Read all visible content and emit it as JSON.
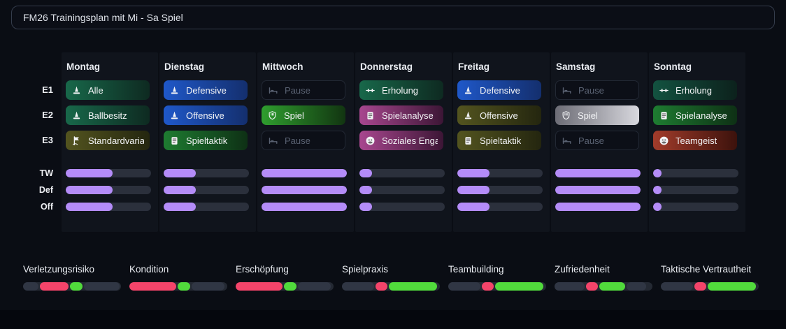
{
  "theme": {
    "background": "#0a0d14",
    "panel": "#10141c",
    "accent_purple": "#b48cf8",
    "bar_track": "#2b303c",
    "stat_red": "#f4446a",
    "stat_green": "#51da3c",
    "stat_gray": "#303644",
    "border": "#343c4b"
  },
  "title_bar": {
    "value": "FM26 Trainingsplan mit Mi - Sa Spiel"
  },
  "schedule": {
    "row_labels": [
      "E1",
      "E2",
      "E3",
      "TW",
      "Def",
      "Off"
    ],
    "days": [
      {
        "name": "Montag",
        "sessions": [
          {
            "label": "Alle",
            "icon": "cone-icon",
            "variant": "green"
          },
          {
            "label": "Ballbesitz",
            "icon": "cone-icon",
            "variant": "green"
          },
          {
            "label": "Standardvaria...",
            "icon": "corner-flag-icon",
            "variant": "olive"
          }
        ],
        "bars": {
          "tw": 55,
          "def": 55,
          "off": 55
        }
      },
      {
        "name": "Dienstag",
        "sessions": [
          {
            "label": "Defensive",
            "icon": "cone-icon",
            "variant": "blue"
          },
          {
            "label": "Offensive",
            "icon": "cone-icon",
            "variant": "blue"
          },
          {
            "label": "Spieltaktik",
            "icon": "clipboard-icon",
            "variant": "tactic-green"
          }
        ],
        "bars": {
          "tw": 38,
          "def": 38,
          "off": 38
        }
      },
      {
        "name": "Mittwoch",
        "sessions": [
          {
            "label": "Pause",
            "icon": "bed-icon",
            "variant": "pause"
          },
          {
            "label": "Spiel",
            "icon": "shield-icon",
            "variant": "match-green"
          },
          {
            "label": "Pause",
            "icon": "bed-icon",
            "variant": "pause"
          }
        ],
        "bars": {
          "tw": 100,
          "def": 100,
          "off": 100
        }
      },
      {
        "name": "Donnerstag",
        "sessions": [
          {
            "label": "Erholung",
            "icon": "recovery-icon",
            "variant": "green"
          },
          {
            "label": "Spielanalyse",
            "icon": "clipboard-icon",
            "variant": "magenta"
          },
          {
            "label": "Soziales Engag...",
            "icon": "people-icon",
            "variant": "magenta"
          }
        ],
        "bars": {
          "tw": 15,
          "def": 15,
          "off": 15
        }
      },
      {
        "name": "Freitag",
        "sessions": [
          {
            "label": "Defensive",
            "icon": "cone-icon",
            "variant": "blue"
          },
          {
            "label": "Offensive",
            "icon": "cone-icon",
            "variant": "olive"
          },
          {
            "label": "Spieltaktik",
            "icon": "clipboard-icon",
            "variant": "olive"
          }
        ],
        "bars": {
          "tw": 38,
          "def": 38,
          "off": 38
        }
      },
      {
        "name": "Samstag",
        "sessions": [
          {
            "label": "Pause",
            "icon": "bed-icon",
            "variant": "pause"
          },
          {
            "label": "Spiel",
            "icon": "shield-icon",
            "variant": "silver"
          },
          {
            "label": "Pause",
            "icon": "bed-icon",
            "variant": "pause"
          }
        ],
        "bars": {
          "tw": 100,
          "def": 100,
          "off": 100
        }
      },
      {
        "name": "Sonntag",
        "sessions": [
          {
            "label": "Erholung",
            "icon": "recovery-icon",
            "variant": "green-dark"
          },
          {
            "label": "Spielanalyse",
            "icon": "clipboard-icon",
            "variant": "tactic-green"
          },
          {
            "label": "Teamgeist",
            "icon": "people-icon",
            "variant": "red"
          }
        ],
        "bars": {
          "tw": 10,
          "def": 10,
          "off": 10
        }
      }
    ]
  },
  "stats": {
    "items": [
      {
        "label": "Verletzungsrisiko",
        "segments": [
          {
            "type": "gray",
            "w": 16
          },
          {
            "type": "red",
            "w": 29
          },
          {
            "type": "green",
            "w": 13
          },
          {
            "type": "gray",
            "w": 36
          }
        ]
      },
      {
        "label": "Kondition",
        "segments": [
          {
            "type": "red",
            "w": 48
          },
          {
            "type": "green",
            "w": 13
          },
          {
            "type": "gray",
            "w": 33
          }
        ]
      },
      {
        "label": "Erschöpfung",
        "segments": [
          {
            "type": "red",
            "w": 48
          },
          {
            "type": "green",
            "w": 13
          },
          {
            "type": "gray",
            "w": 33
          }
        ]
      },
      {
        "label": "Spielpraxis",
        "segments": [
          {
            "type": "gray",
            "w": 33
          },
          {
            "type": "red",
            "w": 12
          },
          {
            "type": "green",
            "w": 49
          }
        ]
      },
      {
        "label": "Teambuilding",
        "segments": [
          {
            "type": "gray",
            "w": 33
          },
          {
            "type": "red",
            "w": 12
          },
          {
            "type": "green",
            "w": 49
          }
        ]
      },
      {
        "label": "Zufriedenheit",
        "segments": [
          {
            "type": "gray",
            "w": 31
          },
          {
            "type": "red",
            "w": 12
          },
          {
            "type": "green",
            "w": 26
          },
          {
            "type": "gray",
            "w": 20
          }
        ]
      },
      {
        "label": "Taktische Vertrautheit",
        "segments": [
          {
            "type": "gray",
            "w": 33
          },
          {
            "type": "red",
            "w": 12
          },
          {
            "type": "green",
            "w": 49
          }
        ]
      }
    ]
  }
}
